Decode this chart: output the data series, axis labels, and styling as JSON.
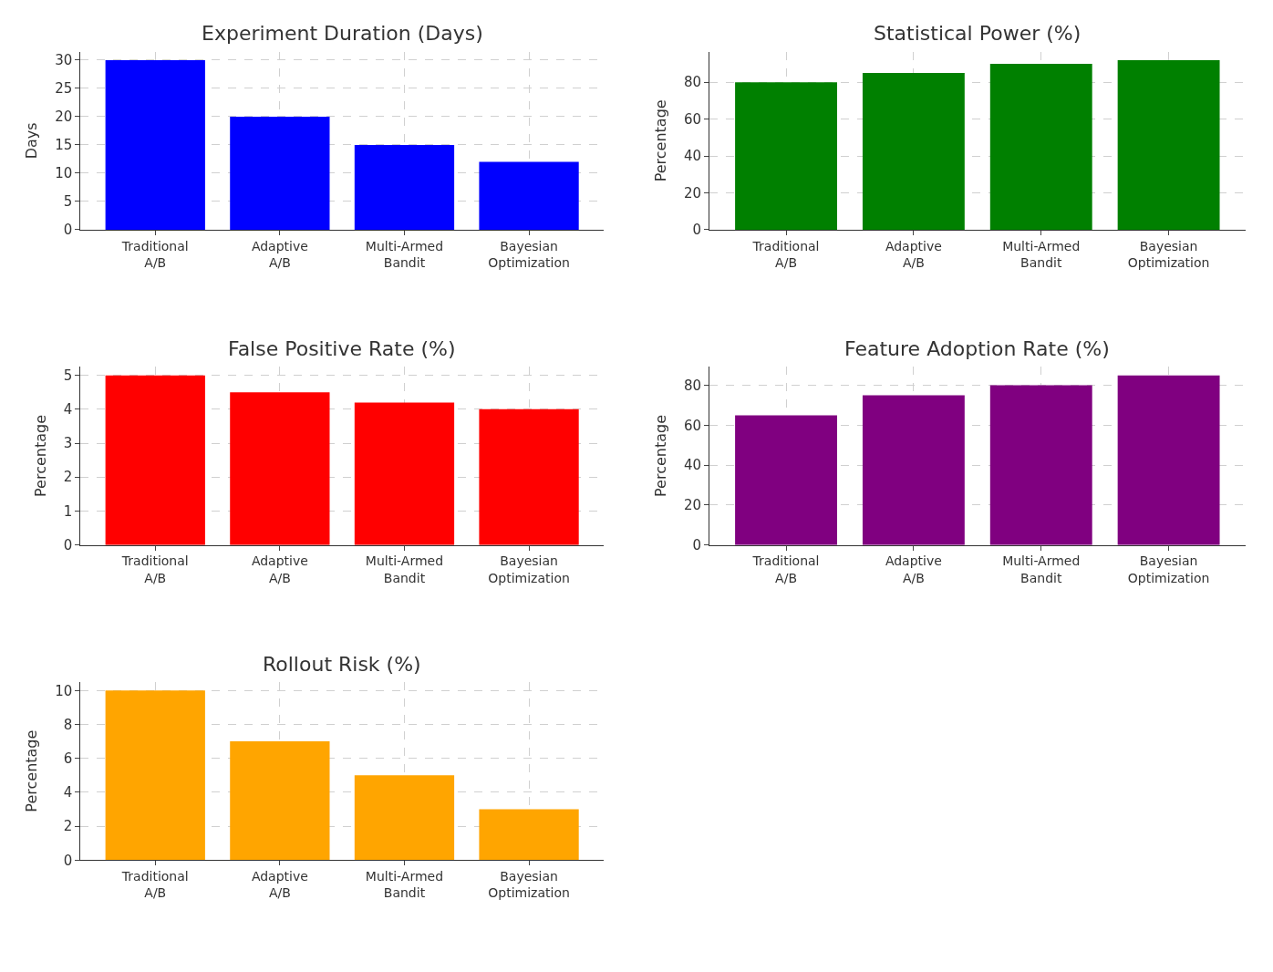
{
  "chart_data": [
    {
      "type": "bar",
      "title": "Experiment Duration (Days)",
      "ylabel": "Days",
      "categories": [
        "Traditional A/B",
        "Adaptive A/B",
        "Multi-Armed Bandit",
        "Bayesian Optimization"
      ],
      "values": [
        30,
        20,
        15,
        12
      ],
      "color": "#0000ff",
      "ylim": [
        0,
        31.5
      ],
      "yticks": [
        0,
        5,
        10,
        15,
        20,
        25,
        30
      ],
      "grid": true
    },
    {
      "type": "bar",
      "title": "Statistical Power (%)",
      "ylabel": "Percentage",
      "categories": [
        "Traditional A/B",
        "Adaptive A/B",
        "Multi-Armed Bandit",
        "Bayesian Optimization"
      ],
      "values": [
        80,
        85,
        90,
        92
      ],
      "color": "#008000",
      "ylim": [
        0,
        96.6
      ],
      "yticks": [
        0,
        20,
        40,
        60,
        80
      ],
      "grid": true
    },
    {
      "type": "bar",
      "title": "False Positive Rate (%)",
      "ylabel": "Percentage",
      "categories": [
        "Traditional A/B",
        "Adaptive A/B",
        "Multi-Armed Bandit",
        "Bayesian Optimization"
      ],
      "values": [
        5,
        4.5,
        4.2,
        4
      ],
      "color": "#ff0000",
      "ylim": [
        0,
        5.25
      ],
      "yticks": [
        0,
        1,
        2,
        3,
        4,
        5
      ],
      "grid": true
    },
    {
      "type": "bar",
      "title": "Feature Adoption Rate (%)",
      "ylabel": "Percentage",
      "categories": [
        "Traditional A/B",
        "Adaptive A/B",
        "Multi-Armed Bandit",
        "Bayesian Optimization"
      ],
      "values": [
        65,
        75,
        80,
        85
      ],
      "color": "#800080",
      "ylim": [
        0,
        89.25
      ],
      "yticks": [
        0,
        20,
        40,
        60,
        80
      ],
      "grid": true
    },
    {
      "type": "bar",
      "title": "Rollout Risk (%)",
      "ylabel": "Percentage",
      "categories": [
        "Traditional A/B",
        "Adaptive A/B",
        "Multi-Armed Bandit",
        "Bayesian Optimization"
      ],
      "values": [
        10,
        7,
        5,
        3
      ],
      "color": "#ffa500",
      "ylim": [
        0,
        10.5
      ],
      "yticks": [
        0,
        2,
        4,
        6,
        8,
        10
      ],
      "grid": true
    }
  ]
}
